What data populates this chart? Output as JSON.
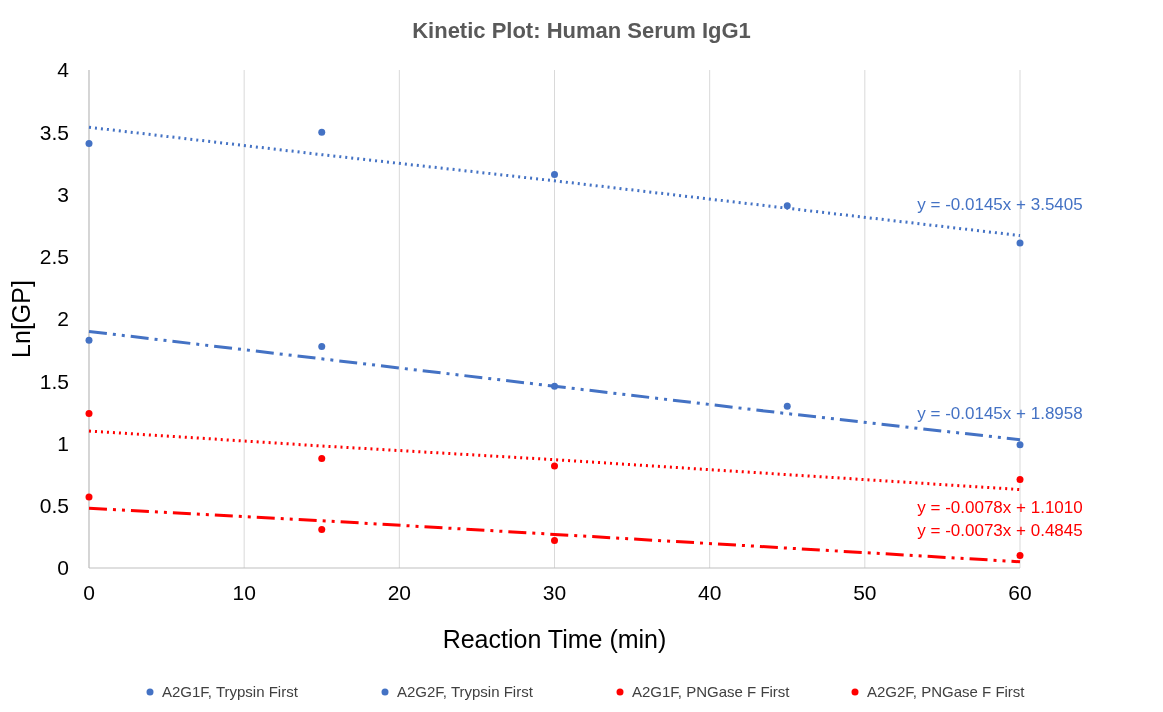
{
  "chart_data": {
    "type": "scatter",
    "title": "Kinetic Plot: Human Serum IgG1",
    "xlabel": "Reaction Time (min)",
    "ylabel": "Ln[GP]",
    "x": [
      0,
      15,
      30,
      45,
      60
    ],
    "xlim": [
      0,
      60
    ],
    "xticks": [
      0,
      10,
      20,
      30,
      40,
      50,
      60
    ],
    "ylim": [
      0,
      4
    ],
    "yticks": [
      0,
      0.5,
      1,
      1.5,
      2,
      2.5,
      3,
      3.5,
      4
    ],
    "grid": "x",
    "legend": "bottom",
    "marker": "circle",
    "series": [
      {
        "name": "A2G1F, Trypsin First",
        "color": "#4472c4",
        "values": [
          3.41,
          3.5,
          3.16,
          2.91,
          2.61
        ]
      },
      {
        "name": "A2G2F, Trypsin First",
        "color": "#4472c4",
        "values": [
          1.83,
          1.78,
          1.46,
          1.3,
          0.99
        ]
      },
      {
        "name": "A2G1F, PNGase F First",
        "color": "#ff0000",
        "values": [
          1.24,
          0.88,
          0.82,
          null,
          0.71
        ]
      },
      {
        "name": "A2G2F, PNGase F First",
        "color": "#ff0000",
        "values": [
          0.57,
          0.31,
          0.22,
          null,
          0.1
        ]
      },
      {
        "type": "line",
        "color": "#4472c4",
        "line_style": "dotted",
        "marker": "none",
        "values": [
          3.54,
          3.32,
          3.11,
          2.89,
          2.67
        ]
      },
      {
        "type": "line",
        "color": "#4472c4",
        "line_style": "dashdot",
        "marker": "none",
        "values": [
          1.9,
          1.68,
          1.46,
          1.24,
          1.03
        ]
      },
      {
        "type": "line",
        "color": "#ff0000",
        "line_style": "dotted",
        "marker": "none",
        "values": [
          1.1,
          0.98,
          0.87,
          0.75,
          0.63
        ]
      },
      {
        "type": "line",
        "color": "#ff0000",
        "line_style": "dashdot",
        "marker": "none",
        "values": [
          0.48,
          0.38,
          0.27,
          0.16,
          0.05
        ]
      }
    ],
    "annotations": [
      "y = -0.0145x + 3.5405",
      "y = -0.0145x + 1.8958",
      "y = -0.0078x + 1.1010",
      "y = -0.0073x + 0.4845"
    ]
  }
}
